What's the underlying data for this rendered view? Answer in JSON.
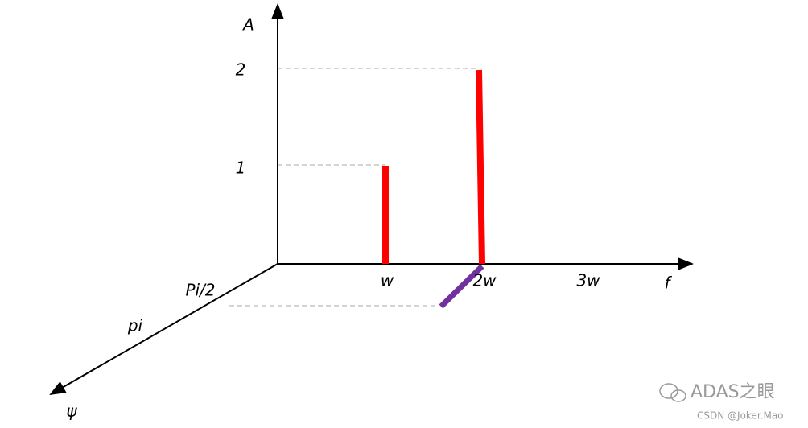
{
  "axes": {
    "amplitude": "A",
    "frequency": "f",
    "phase": "ψ"
  },
  "amplitude_ticks": [
    "1",
    "2"
  ],
  "frequency_ticks": [
    "w",
    "2w",
    "3w"
  ],
  "phase_ticks": [
    "Pi/2",
    "pi"
  ],
  "watermark": {
    "brand": "ADAS之眼",
    "credit": "CSDN @Joker.Mao"
  }
}
